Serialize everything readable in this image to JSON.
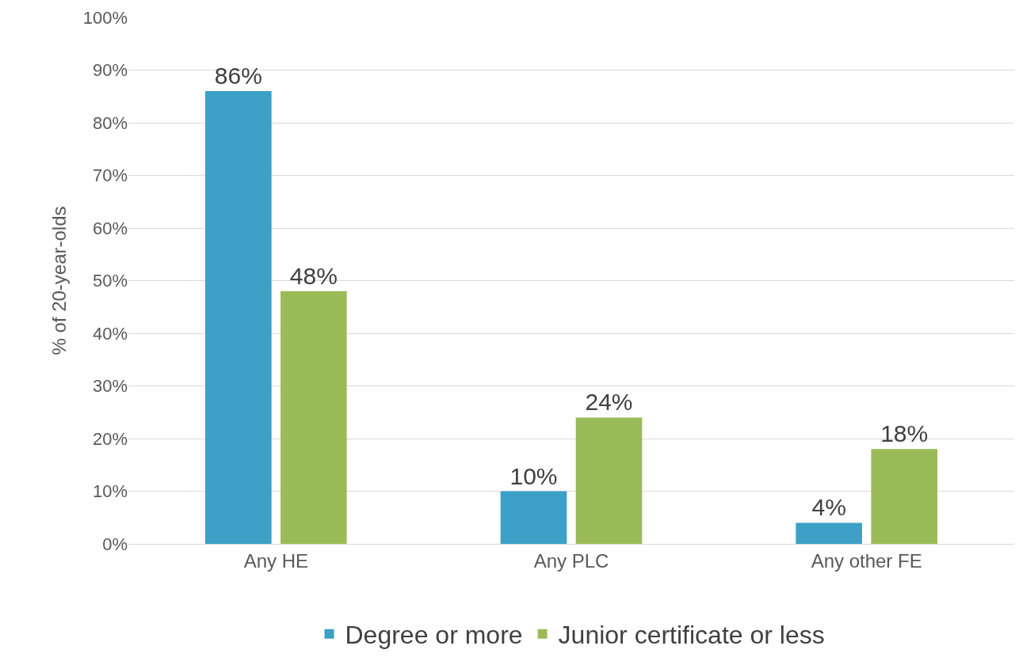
{
  "chart_data": {
    "type": "bar",
    "ylabel": "% of 20-year-olds",
    "categories": [
      "Any HE",
      "Any PLC",
      "Any other FE"
    ],
    "series": [
      {
        "name": "Degree or more",
        "color": "#3ca0c7",
        "values": [
          86,
          10,
          4
        ],
        "value_labels": [
          "86%",
          "10%",
          "4%"
        ]
      },
      {
        "name": "Junior certificate or less",
        "color": "#9bbb59",
        "values": [
          48,
          24,
          18
        ],
        "value_labels": [
          "48%",
          "24%",
          "18%"
        ]
      }
    ],
    "ylim": [
      0,
      100
    ],
    "yticks": [
      {
        "value": 0,
        "label": "0%"
      },
      {
        "value": 10,
        "label": "10%"
      },
      {
        "value": 20,
        "label": "20%"
      },
      {
        "value": 30,
        "label": "30%"
      },
      {
        "value": 40,
        "label": "40%"
      },
      {
        "value": 50,
        "label": "50%"
      },
      {
        "value": 60,
        "label": "60%"
      },
      {
        "value": 70,
        "label": "70%"
      },
      {
        "value": 80,
        "label": "80%"
      },
      {
        "value": 90,
        "label": "90%"
      },
      {
        "value": 100,
        "label": "100%"
      }
    ],
    "grid": "y",
    "legend": "bottom"
  }
}
